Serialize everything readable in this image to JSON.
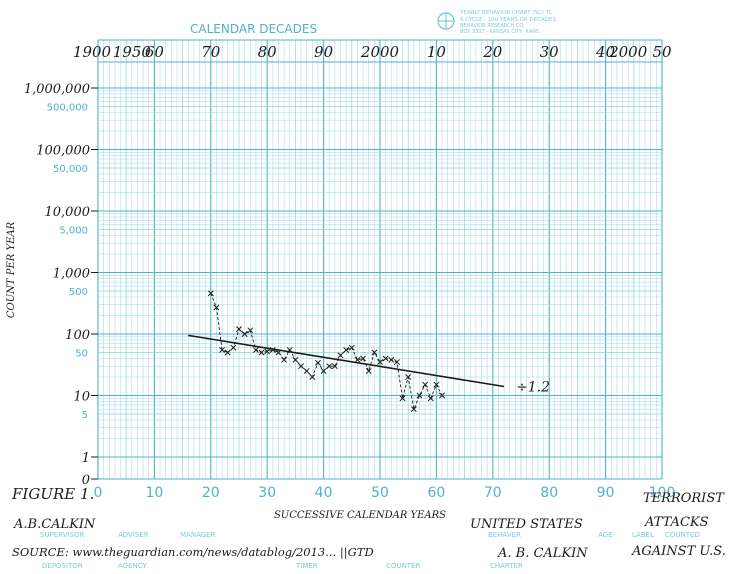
{
  "chart_data": {
    "type": "line",
    "title": "",
    "header_label": "CALENDAR DECADES",
    "chart_brand_lines": [
      "YEARLY BEHAVIOR CHART (SC) TC",
      "6 CYCLE · 100 YEARS OR DECADES",
      "BEHAVIOR RESEARCH CO.",
      "BOX 3337 · KANSAS CITY, KANS."
    ],
    "top_axis_labels": [
      "1900",
      "1950",
      "60",
      "70",
      "80",
      "90",
      "2000",
      "10",
      "20",
      "30",
      "40",
      "2000",
      "50"
    ],
    "xlabel": "SUCCESSIVE CALENDAR YEARS",
    "ylabel": "COUNT PER YEAR",
    "x_ticks": [
      "0",
      "10",
      "20",
      "30",
      "40",
      "50",
      "60",
      "70",
      "80",
      "90",
      "100"
    ],
    "y_ticks_hand": [
      "1,000,000",
      "100,000",
      "10,000",
      "1,000",
      "100",
      "10",
      "1",
      "0"
    ],
    "y_ticks_print": [
      "500,000",
      "50,000",
      "5,000",
      "500",
      "50",
      "5"
    ],
    "y_scale": "log",
    "xlim": [
      0,
      100
    ],
    "ylim": [
      1,
      1000000
    ],
    "grid": true,
    "series": [
      {
        "name": "",
        "marker": "x",
        "x": [
          20,
          21,
          22,
          23,
          24,
          25,
          26,
          27,
          28,
          29,
          30,
          31,
          32,
          33,
          34,
          35,
          36,
          37,
          38,
          39,
          40,
          41,
          42,
          43,
          44,
          45,
          46,
          47,
          48,
          49,
          50,
          51,
          52,
          53,
          54,
          55,
          56,
          57,
          58,
          59,
          60,
          61
        ],
        "y": [
          460,
          270,
          55,
          50,
          60,
          120,
          100,
          115,
          55,
          50,
          52,
          55,
          50,
          38,
          55,
          38,
          30,
          25,
          20,
          34,
          25,
          30,
          30,
          45,
          55,
          60,
          38,
          40,
          25,
          50,
          35,
          40,
          38,
          35,
          9,
          20,
          6,
          10,
          15,
          9,
          15,
          10
        ]
      }
    ],
    "trend_line": {
      "x": [
        16,
        72
      ],
      "y": [
        95,
        14
      ]
    },
    "trend_label": "÷1.2"
  },
  "annotations": {
    "figure": "FIGURE 1.",
    "author_top": "A.B.CALKIN",
    "source": "SOURCE: www.theguardian.com/news/datablog/2013... ||GTD",
    "subject": "UNITED STATES",
    "charter": "A. B. CALKIN",
    "label_lines": [
      "TERRORIST",
      "ATTACKS",
      "AGAINST U.S."
    ]
  },
  "footer_labels": [
    "SUPERVISOR",
    "ADVISER",
    "MANAGER",
    "BEHAVER",
    "AGE",
    "LABEL",
    "COUNTED",
    "DEPOSITOR",
    "AGENCY",
    "TIMER",
    "COUNTER",
    "CHARTER"
  ],
  "colors": {
    "grid": "#8fd3e2",
    "grid_major": "#4fb3c8",
    "ink": "#1c1c1c"
  }
}
